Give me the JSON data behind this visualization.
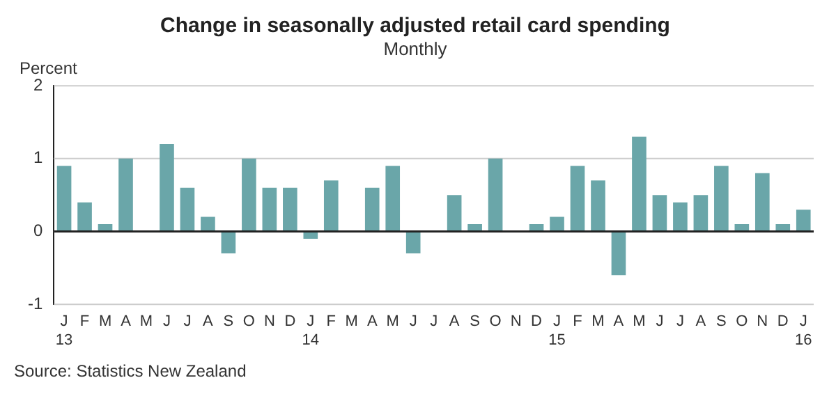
{
  "chart_data": {
    "type": "bar",
    "title": "Change in seasonally adjusted retail card spending",
    "subtitle": "Monthly",
    "ylabel": "Percent",
    "categories": [
      "J\n13",
      "F",
      "M",
      "A",
      "M",
      "J",
      "J",
      "A",
      "S",
      "O",
      "N",
      "D",
      "J\n14",
      "F",
      "M",
      "A",
      "M",
      "J",
      "J",
      "A",
      "S",
      "O",
      "N",
      "D",
      "J\n15",
      "F",
      "M",
      "A",
      "M",
      "J",
      "J",
      "A",
      "S",
      "O",
      "N",
      "D",
      "J\n16"
    ],
    "values": [
      0.9,
      0.4,
      0.1,
      1.0,
      0,
      1.2,
      0.6,
      0.2,
      -0.3,
      1.0,
      0.6,
      0.6,
      -0.1,
      0.7,
      0,
      0.6,
      0.9,
      -0.3,
      0,
      0.5,
      0.1,
      1.0,
      0,
      0.1,
      0.2,
      0.9,
      0.7,
      -0.6,
      1.3,
      0.5,
      0.4,
      0.5,
      0.9,
      0.1,
      0.8,
      0.1,
      0.3
    ],
    "color": "#6aa6a9",
    "ylim": [
      -1,
      2
    ],
    "yticks": [
      -1,
      0,
      1,
      2
    ],
    "grid": "y",
    "annotations": [
      "Source: Statistics New Zealand"
    ]
  }
}
